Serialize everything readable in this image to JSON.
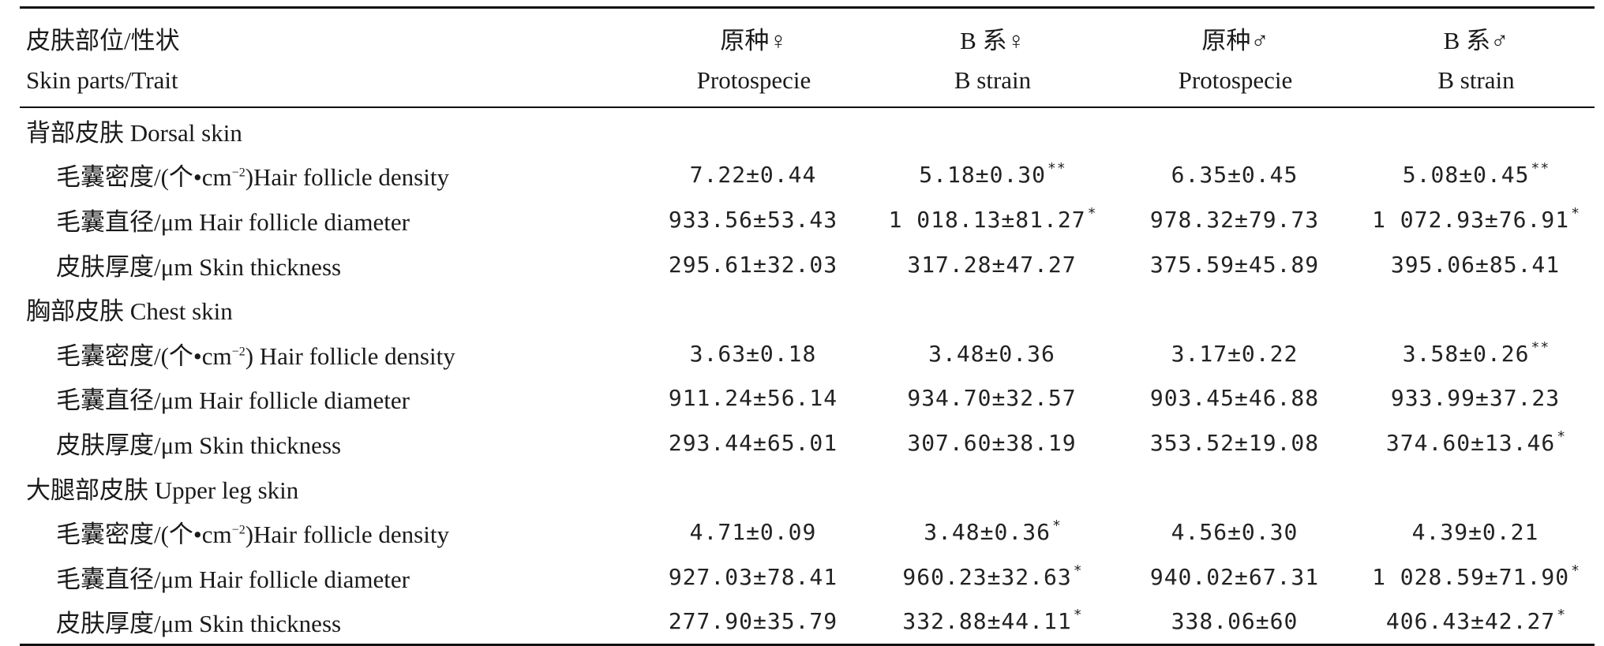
{
  "header": {
    "col0_cn": "皮肤部位/性状",
    "col0_en": "Skin parts/Trait",
    "columns": [
      {
        "cn": "原种♀",
        "en": "Protospecie"
      },
      {
        "cn": "B 系♀",
        "en": "B strain"
      },
      {
        "cn": "原种♂",
        "en": "Protospecie"
      },
      {
        "cn": "B 系♂",
        "en": "B strain"
      }
    ]
  },
  "sections": [
    {
      "title": "背部皮肤 Dorsal skin",
      "rows": [
        {
          "trait_a": "毛囊密度/(个•cm",
          "trait_sup": "−2",
          "trait_b": ")Hair follicle density",
          "values": [
            {
              "v": "7.22±0.44",
              "sig": ""
            },
            {
              "v": "5.18±0.30",
              "sig": "**"
            },
            {
              "v": "6.35±0.45",
              "sig": ""
            },
            {
              "v": "5.08±0.45",
              "sig": "**"
            }
          ]
        },
        {
          "trait": "毛囊直径/μm Hair follicle diameter",
          "values": [
            {
              "v": "933.56±53.43",
              "sig": ""
            },
            {
              "v": "1 018.13±81.27",
              "sig": "*"
            },
            {
              "v": "978.32±79.73",
              "sig": ""
            },
            {
              "v": "1 072.93±76.91",
              "sig": "*"
            }
          ]
        },
        {
          "trait": "皮肤厚度/μm Skin thickness",
          "values": [
            {
              "v": "295.61±32.03",
              "sig": ""
            },
            {
              "v": "317.28±47.27",
              "sig": ""
            },
            {
              "v": "375.59±45.89",
              "sig": ""
            },
            {
              "v": "395.06±85.41",
              "sig": ""
            }
          ]
        }
      ]
    },
    {
      "title": "胸部皮肤 Chest skin",
      "rows": [
        {
          "trait_a": "毛囊密度/(个•cm",
          "trait_sup": "−2",
          "trait_b": ") Hair follicle density",
          "values": [
            {
              "v": "3.63±0.18",
              "sig": ""
            },
            {
              "v": "3.48±0.36",
              "sig": ""
            },
            {
              "v": "3.17±0.22",
              "sig": ""
            },
            {
              "v": "3.58±0.26",
              "sig": "**"
            }
          ]
        },
        {
          "trait": "毛囊直径/μm Hair follicle diameter",
          "values": [
            {
              "v": "911.24±56.14",
              "sig": ""
            },
            {
              "v": "934.70±32.57",
              "sig": ""
            },
            {
              "v": "903.45±46.88",
              "sig": ""
            },
            {
              "v": "933.99±37.23",
              "sig": ""
            }
          ]
        },
        {
          "trait": "皮肤厚度/μm Skin thickness",
          "values": [
            {
              "v": "293.44±65.01",
              "sig": ""
            },
            {
              "v": "307.60±38.19",
              "sig": ""
            },
            {
              "v": "353.52±19.08",
              "sig": ""
            },
            {
              "v": "374.60±13.46",
              "sig": "*"
            }
          ]
        }
      ]
    },
    {
      "title": "大腿部皮肤 Upper leg skin",
      "rows": [
        {
          "trait_a": "毛囊密度/(个•cm",
          "trait_sup": "−2",
          "trait_b": ")Hair follicle density",
          "values": [
            {
              "v": "4.71±0.09",
              "sig": ""
            },
            {
              "v": "3.48±0.36",
              "sig": "*"
            },
            {
              "v": "4.56±0.30",
              "sig": ""
            },
            {
              "v": "4.39±0.21",
              "sig": ""
            }
          ]
        },
        {
          "trait": "毛囊直径/μm Hair follicle diameter",
          "values": [
            {
              "v": "927.03±78.41",
              "sig": ""
            },
            {
              "v": "960.23±32.63",
              "sig": "*"
            },
            {
              "v": "940.02±67.31",
              "sig": ""
            },
            {
              "v": "1 028.59±71.90",
              "sig": "*"
            }
          ]
        },
        {
          "trait": "皮肤厚度/μm Skin thickness",
          "values": [
            {
              "v": "277.90±35.79",
              "sig": ""
            },
            {
              "v": "332.88±44.11",
              "sig": "*"
            },
            {
              "v": "338.06±60",
              "sig": ""
            },
            {
              "v": "406.43±42.27",
              "sig": "*"
            }
          ]
        }
      ]
    }
  ]
}
